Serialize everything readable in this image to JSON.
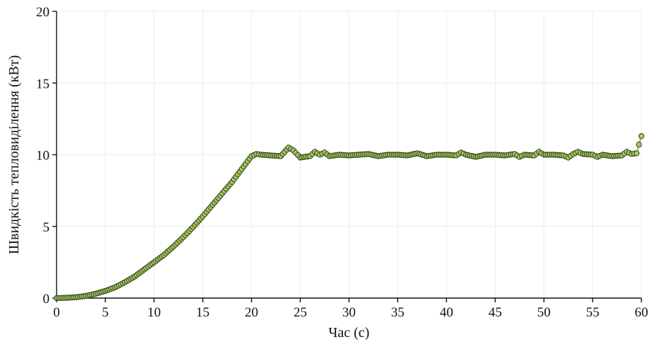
{
  "chart_data": {
    "type": "line",
    "title": "",
    "xlabel": "Час (с)",
    "ylabel": "Швидкість тепловиділення (кВт)",
    "xlim": [
      0,
      60
    ],
    "ylim": [
      0,
      20
    ],
    "xticks": [
      "0",
      "5",
      "10",
      "15",
      "20",
      "25",
      "30",
      "35",
      "40",
      "45",
      "50",
      "55",
      "60"
    ],
    "yticks": [
      "0",
      "5",
      "10",
      "15",
      "20"
    ],
    "grid": true,
    "legend": "none",
    "series": [
      {
        "color": "#9bbb59",
        "marker_fill": "#a9c96a",
        "marker_edge": "#3a4d1a",
        "x": [
          0,
          1,
          2,
          3,
          4,
          5,
          6,
          7,
          8,
          9,
          10,
          11,
          12,
          13,
          14,
          15,
          16,
          17,
          18,
          19,
          20,
          20.5,
          21,
          22,
          23,
          23.8,
          24.3,
          25,
          26,
          26.5,
          27,
          27.5,
          28,
          29,
          30,
          31,
          32,
          33,
          34,
          35,
          36,
          37,
          38,
          39,
          40,
          41,
          41.5,
          42,
          43,
          44,
          45,
          46,
          47,
          47.5,
          48,
          49,
          49.5,
          50,
          51,
          52,
          52.5,
          53,
          53.5,
          54,
          55,
          55.5,
          56,
          57,
          58,
          58.5,
          59,
          59.5,
          60
        ],
        "y": [
          0,
          0.02,
          0.06,
          0.15,
          0.3,
          0.5,
          0.75,
          1.1,
          1.5,
          2.0,
          2.5,
          3.0,
          3.6,
          4.25,
          4.95,
          5.7,
          6.5,
          7.3,
          8.1,
          9.0,
          9.9,
          10.05,
          10.0,
          9.95,
          9.9,
          10.5,
          10.3,
          9.8,
          9.9,
          10.2,
          10.0,
          10.15,
          9.9,
          10.0,
          9.95,
          10.0,
          10.05,
          9.9,
          10.0,
          10.0,
          9.95,
          10.1,
          9.9,
          10.0,
          10.0,
          9.95,
          10.15,
          10.0,
          9.85,
          10.0,
          10.0,
          9.95,
          10.05,
          9.85,
          10.0,
          9.95,
          10.2,
          10.0,
          10.0,
          9.95,
          9.8,
          10.05,
          10.2,
          10.05,
          10.0,
          9.85,
          10.0,
          9.9,
          9.95,
          10.2,
          10.05,
          10.1,
          11.3
        ]
      }
    ]
  }
}
